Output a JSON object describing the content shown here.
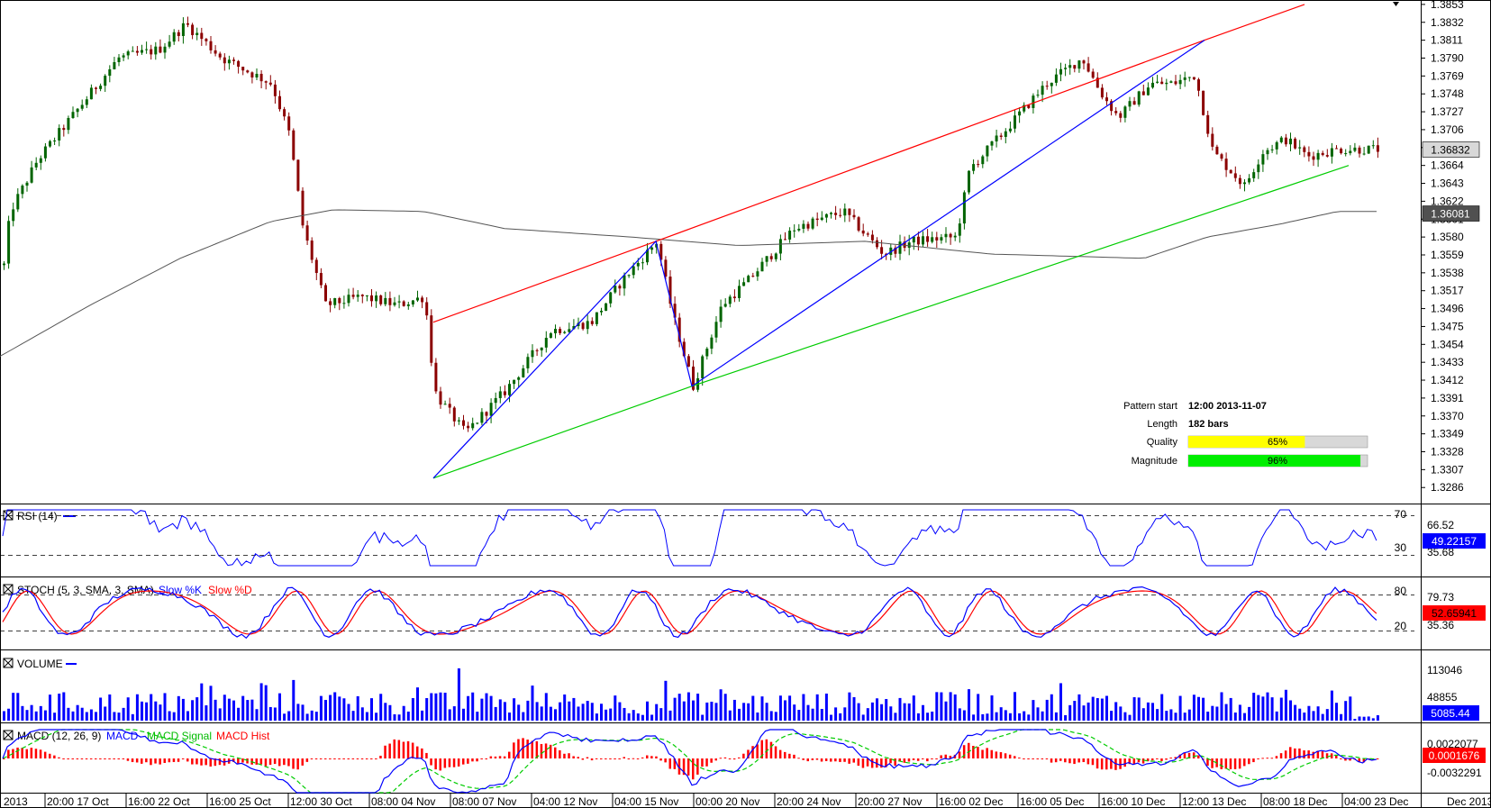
{
  "main": {
    "price_ticks": [
      "1.3853",
      "1.3832",
      "1.3811",
      "1.3790",
      "1.3769",
      "1.3748",
      "1.3727",
      "1.3706",
      "1.3685",
      "1.3664",
      "1.3643",
      "1.3622",
      "1.3601",
      "1.3580",
      "1.3559",
      "1.3538",
      "1.3517",
      "1.3496",
      "1.3475",
      "1.3454",
      "1.3433",
      "1.3412",
      "1.3391",
      "1.3370",
      "1.3349",
      "1.3328",
      "1.3307",
      "1.3286"
    ],
    "last_price": "1.36832",
    "ma_value": "1.36081"
  },
  "pattern_info": {
    "start_label": "Pattern start",
    "start_value": "12:00 2013-11-07",
    "length_label": "Length",
    "length_value": "182 bars",
    "quality_label": "Quality",
    "quality_text": "65%",
    "quality_pct": 65,
    "magnitude_label": "Magnitude",
    "magnitude_text": "96%",
    "magnitude_pct": 96
  },
  "rsi": {
    "title": "RSI (14)",
    "level_high": "70",
    "level_low": "30",
    "tick_high": "66.52",
    "tick_low": "35.68",
    "last": "49.22157"
  },
  "stoch": {
    "title": "STOCH (5, 3, SMA, 3, SMA)",
    "k_label": "Slow %K",
    "d_label": "Slow %D",
    "level_high": "80",
    "level_low": "20",
    "tick_high": "79.73",
    "tick_low": "35.36",
    "last": "52.65941"
  },
  "volume": {
    "title": "VOLUME",
    "tick_high": "113046",
    "tick_mid": "48855",
    "last": "5085.44"
  },
  "macd": {
    "title": "MACD (12, 26, 9)",
    "macd_label": "MACD",
    "signal_label": "MACD Signal",
    "hist_label": "MACD Hist",
    "tick_high": "0.0022077",
    "tick_low": "-0.0032291",
    "last": "0.0001676"
  },
  "time_axis": [
    "2013",
    "20:00 17 Oct",
    "16:00 22 Oct",
    "16:00 25 Oct",
    "12:00 30 Oct",
    "08:00 04 Nov",
    "08:00 07 Nov",
    "04:00 12 Nov",
    "04:00 15 Nov",
    "00:00 20 Nov",
    "20:00 24 Nov",
    "20:00 27 Nov",
    "16:00 02 Dec",
    "16:00 05 Dec",
    "16:00 10 Dec",
    "12:00 13 Dec",
    "08:00 18 Dec",
    "04:00 23 Dec",
    "Dec 2013"
  ],
  "colors": {
    "up": "#006400",
    "down": "#8b0000",
    "trend_upper": "#ff0000",
    "trend_lower": "#00cc00",
    "zigzag": "#0000ff",
    "ma": "#555555",
    "quality_bar": "#ffff00",
    "magnitude_bar": "#00ee00"
  },
  "chart_data": {
    "type": "candlestick",
    "anchors": [
      [
        0,
        1.352
      ],
      [
        10,
        1.361
      ],
      [
        40,
        1.367
      ],
      [
        130,
        1.379
      ],
      [
        175,
        1.38
      ],
      [
        205,
        1.383
      ],
      [
        245,
        1.379
      ],
      [
        300,
        1.376
      ],
      [
        320,
        1.37
      ],
      [
        335,
        1.359
      ],
      [
        360,
        1.35
      ],
      [
        400,
        1.351
      ],
      [
        440,
        1.35
      ],
      [
        470,
        1.351
      ],
      [
        481,
        1.34
      ],
      [
        486,
        1.339
      ],
      [
        515,
        1.335
      ],
      [
        560,
        1.34
      ],
      [
        610,
        1.347
      ],
      [
        655,
        1.348
      ],
      [
        690,
        1.353
      ],
      [
        728,
        1.3575
      ],
      [
        745,
        1.349
      ],
      [
        768,
        1.3405
      ],
      [
        800,
        1.35
      ],
      [
        830,
        1.353
      ],
      [
        880,
        1.359
      ],
      [
        935,
        1.361
      ],
      [
        980,
        1.356
      ],
      [
        1010,
        1.3575
      ],
      [
        1060,
        1.358
      ],
      [
        1075,
        1.366
      ],
      [
        1110,
        1.37
      ],
      [
        1160,
        1.376
      ],
      [
        1200,
        1.379
      ],
      [
        1220,
        1.375
      ],
      [
        1240,
        1.372
      ],
      [
        1275,
        1.376
      ],
      [
        1300,
        1.376
      ],
      [
        1325,
        1.377
      ],
      [
        1345,
        1.368
      ],
      [
        1380,
        1.364
      ],
      [
        1400,
        1.368
      ],
      [
        1425,
        1.3695
      ],
      [
        1450,
        1.3675
      ],
      [
        1485,
        1.3683
      ]
    ],
    "sma": [
      [
        0,
        1.344
      ],
      [
        100,
        1.35
      ],
      [
        200,
        1.3555
      ],
      [
        300,
        1.3598
      ],
      [
        370,
        1.3612
      ],
      [
        470,
        1.361
      ],
      [
        560,
        1.359
      ],
      [
        700,
        1.358
      ],
      [
        820,
        1.357
      ],
      [
        960,
        1.3575
      ],
      [
        1100,
        1.356
      ],
      [
        1270,
        1.3555
      ],
      [
        1340,
        1.358
      ],
      [
        1420,
        1.3595
      ],
      [
        1485,
        1.361
      ]
    ],
    "trend_upper": [
      [
        481,
        1.348
      ],
      [
        728,
        1.3575
      ],
      [
        1337,
        1.3811
      ],
      [
        1448,
        1.3853
      ]
    ],
    "trend_lower": [
      [
        481,
        1.3297
      ],
      [
        768,
        1.3405
      ],
      [
        1497,
        1.3664
      ]
    ],
    "zigzag": [
      [
        481,
        1.3297
      ],
      [
        728,
        1.3575
      ],
      [
        768,
        1.3405
      ],
      [
        1337,
        1.3811
      ]
    ],
    "ylim": [
      1.3282,
      1.3855
    ]
  }
}
